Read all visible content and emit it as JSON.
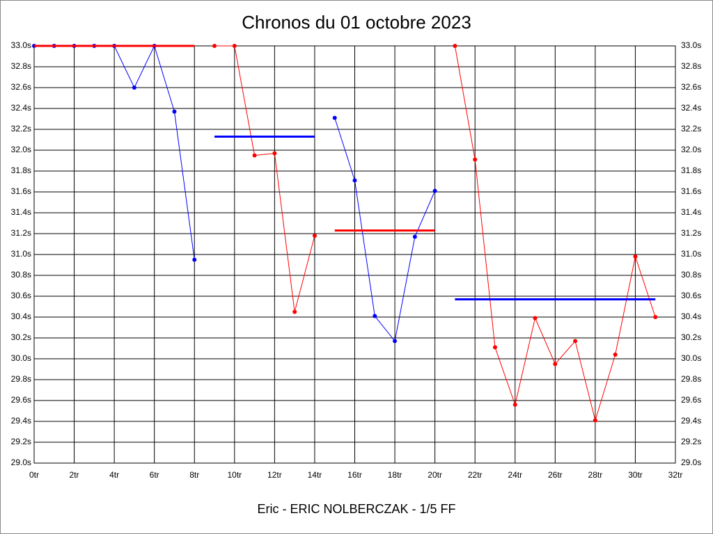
{
  "chart_data": {
    "type": "line",
    "title": "Chronos du 01 octobre 2023",
    "xlabel": "Eric - ERIC NOLBERCZAK - 1/5 FF",
    "xlim": [
      0,
      32
    ],
    "ylim": [
      29.0,
      33.0
    ],
    "grid": true,
    "xticks": [
      {
        "value": 0,
        "label": "0tr"
      },
      {
        "value": 2,
        "label": "2tr"
      },
      {
        "value": 4,
        "label": "4tr"
      },
      {
        "value": 6,
        "label": "6tr"
      },
      {
        "value": 8,
        "label": "8tr"
      },
      {
        "value": 10,
        "label": "10tr"
      },
      {
        "value": 12,
        "label": "12tr"
      },
      {
        "value": 14,
        "label": "14tr"
      },
      {
        "value": 16,
        "label": "16tr"
      },
      {
        "value": 18,
        "label": "18tr"
      },
      {
        "value": 20,
        "label": "20tr"
      },
      {
        "value": 22,
        "label": "22tr"
      },
      {
        "value": 24,
        "label": "24tr"
      },
      {
        "value": 26,
        "label": "26tr"
      },
      {
        "value": 28,
        "label": "28tr"
      },
      {
        "value": 30,
        "label": "30tr"
      },
      {
        "value": 32,
        "label": "32tr"
      }
    ],
    "yticks": [
      {
        "value": 29.0,
        "label": "29.0s"
      },
      {
        "value": 29.2,
        "label": "29.2s"
      },
      {
        "value": 29.4,
        "label": "29.4s"
      },
      {
        "value": 29.6,
        "label": "29.6s"
      },
      {
        "value": 29.8,
        "label": "29.8s"
      },
      {
        "value": 30.0,
        "label": "30.0s"
      },
      {
        "value": 30.2,
        "label": "30.2s"
      },
      {
        "value": 30.4,
        "label": "30.4s"
      },
      {
        "value": 30.6,
        "label": "30.6s"
      },
      {
        "value": 30.8,
        "label": "30.8s"
      },
      {
        "value": 31.0,
        "label": "31.0s"
      },
      {
        "value": 31.2,
        "label": "31.2s"
      },
      {
        "value": 31.4,
        "label": "31.4s"
      },
      {
        "value": 31.6,
        "label": "31.6s"
      },
      {
        "value": 31.8,
        "label": "31.8s"
      },
      {
        "value": 32.0,
        "label": "32.0s"
      },
      {
        "value": 32.2,
        "label": "32.2s"
      },
      {
        "value": 32.4,
        "label": "32.4s"
      },
      {
        "value": 32.6,
        "label": "32.6s"
      },
      {
        "value": 32.8,
        "label": "32.8s"
      },
      {
        "value": 33.0,
        "label": "33.0s"
      }
    ],
    "series": [
      {
        "color": "#0000ff",
        "markers": true,
        "x": [
          0,
          1,
          2,
          3,
          4,
          5,
          6,
          7,
          8
        ],
        "values": [
          33.0,
          33.0,
          33.0,
          33.0,
          33.0,
          32.6,
          33.0,
          32.37,
          30.95
        ]
      },
      {
        "color": "#ff0000",
        "markers": false,
        "x": [
          0,
          8
        ],
        "values": [
          33.0,
          33.0
        ]
      },
      {
        "color": "#ff0000",
        "markers": true,
        "x": [
          9,
          10,
          11,
          12,
          13,
          14
        ],
        "values": [
          33.0,
          33.0,
          31.95,
          31.97,
          30.45,
          31.18
        ]
      },
      {
        "color": "#0000ff",
        "markers": false,
        "x": [
          9,
          14
        ],
        "values": [
          32.13,
          32.13
        ]
      },
      {
        "color": "#0000ff",
        "markers": true,
        "x": [
          15,
          16,
          17,
          18,
          19,
          20
        ],
        "values": [
          32.31,
          31.71,
          30.41,
          30.17,
          31.17,
          31.61
        ]
      },
      {
        "color": "#ff0000",
        "markers": false,
        "x": [
          15,
          20
        ],
        "values": [
          31.23,
          31.23
        ]
      },
      {
        "color": "#ff0000",
        "markers": true,
        "x": [
          21,
          22,
          23,
          24,
          25,
          26,
          27,
          28,
          29,
          30,
          31
        ],
        "values": [
          33.0,
          31.91,
          30.11,
          29.56,
          30.39,
          29.95,
          30.17,
          29.41,
          30.04,
          30.98,
          30.4
        ]
      },
      {
        "color": "#0000ff",
        "markers": false,
        "x": [
          21,
          31
        ],
        "values": [
          30.57,
          30.57
        ]
      }
    ]
  }
}
